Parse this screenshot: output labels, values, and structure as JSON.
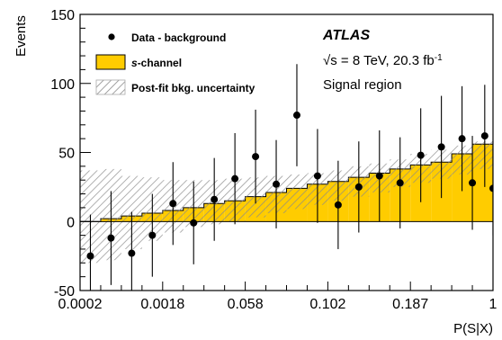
{
  "chart_data": {
    "type": "bar",
    "ylabel": "Events",
    "xlabel": "P(S|X)",
    "ylim": [
      -50,
      150
    ],
    "yticks": [
      -50,
      0,
      50,
      100,
      150
    ],
    "xtick_labels": [
      "0.0002",
      "0.0018",
      "0.058",
      "0.102",
      "0.187",
      "1"
    ],
    "nbins": 20,
    "annotations": {
      "experiment": "ATLAS",
      "energy_prefix": "√s = 8 TeV, 20.3 fb",
      "energy_superscript": "-1",
      "region": "Signal region"
    },
    "legend": {
      "placement": "top-left",
      "entries": [
        {
          "key": "data",
          "prefix": "",
          "italic": "",
          "suffix": "Data - background"
        },
        {
          "key": "signal",
          "prefix": "",
          "italic": "s",
          "suffix": "-channel"
        },
        {
          "key": "uncertainty",
          "prefix": "",
          "italic": "",
          "suffix": "Post-fit bkg. uncertainty"
        }
      ]
    },
    "series": [
      {
        "name": "s-channel",
        "values": [
          0,
          2,
          4,
          6,
          8,
          10,
          13,
          15,
          18,
          21,
          24,
          27,
          29,
          32,
          35,
          38,
          41,
          43,
          49,
          56
        ]
      },
      {
        "name": "Data - background",
        "values": [
          -25,
          -12,
          -23,
          -10,
          13,
          -1,
          16,
          31,
          47,
          27,
          77,
          33,
          12,
          25,
          33,
          28,
          48,
          54,
          60,
          28,
          62,
          24
        ]
      }
    ],
    "data_bins": [
      0.5,
      1.5,
      2.5,
      3.5,
      4.5,
      5.5,
      6.5,
      7.5,
      8.5,
      9.5,
      10.5,
      11.5,
      12.5,
      13.5,
      14.5,
      15.5,
      16.5,
      17.5,
      18.5,
      19.0,
      19.6,
      20.0
    ],
    "data_errors": [
      30,
      34,
      30,
      30,
      30,
      30,
      30,
      33,
      34,
      32,
      37,
      34,
      32,
      33,
      33,
      33,
      34,
      37,
      38,
      34,
      37,
      34
    ],
    "uncertainty_band": [
      [
        -30,
        37
      ],
      [
        -28,
        38
      ],
      [
        -20,
        33
      ],
      [
        -14,
        32
      ],
      [
        -8,
        30
      ],
      [
        -4,
        30
      ],
      [
        -2,
        30
      ],
      [
        0,
        31
      ],
      [
        3,
        32
      ],
      [
        6,
        33
      ],
      [
        9,
        34
      ],
      [
        12,
        35
      ],
      [
        15,
        37
      ],
      [
        18,
        40
      ],
      [
        21,
        42
      ],
      [
        25,
        45
      ],
      [
        28,
        49
      ],
      [
        31,
        52
      ],
      [
        34,
        55
      ],
      [
        38,
        58
      ]
    ],
    "colors": {
      "signal": "#ffcc00",
      "signal_edge": "#000000",
      "band": "#888888",
      "data": "#000000"
    }
  }
}
